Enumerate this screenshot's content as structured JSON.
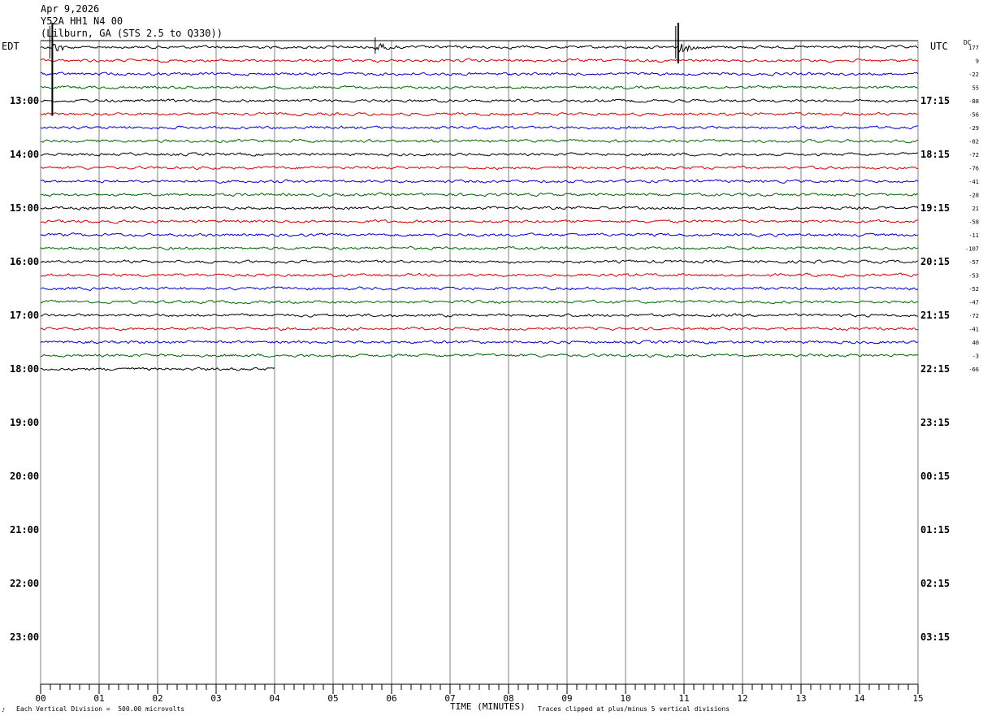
{
  "header": {
    "date": "Apr 9,2026",
    "station": "Y52A HH1 N4 00",
    "location": "(Lilburn, GA (STS 2.5 to Q330))"
  },
  "labels": {
    "left_timezone": "EDT",
    "right_timezone": "UTC",
    "dc_header": "DC"
  },
  "footer": {
    "scale_note": "Each Vertical Division =  500.00 microvolts",
    "time_axis_label": "TIME (MINUTES)",
    "clip_note": "Traces clipped at plus/minus 5 vertical divisions",
    "corner_mark": "♪"
  },
  "colors": {
    "trace_cycle": [
      "#000000",
      "#cc0000",
      "#0000cc",
      "#006600"
    ],
    "grid": "#808080"
  },
  "chart_data": {
    "type": "line",
    "title": "",
    "xlabel": "TIME (MINUTES)",
    "ylabel": "",
    "x_range_minutes": [
      0,
      15
    ],
    "x_ticks": [
      "00",
      "01",
      "02",
      "03",
      "04",
      "05",
      "06",
      "07",
      "08",
      "09",
      "10",
      "11",
      "12",
      "13",
      "14",
      "15"
    ],
    "rows_per_hour": 4,
    "total_rows": 48,
    "left_hour_labels": [
      "13:00",
      "14:00",
      "15:00",
      "16:00",
      "17:00",
      "18:00",
      "19:00",
      "20:00",
      "21:00",
      "22:00",
      "23:00"
    ],
    "right_hour_labels": [
      "17:15",
      "18:15",
      "19:15",
      "20:15",
      "21:15",
      "22:15",
      "23:15",
      "00:15",
      "01:15",
      "02:15",
      "03:15"
    ],
    "first_left_label_row": 4,
    "dc_offsets": [
      177,
      9,
      -22,
      55,
      -88,
      -56,
      -29,
      -82,
      -72,
      -76,
      -41,
      -28,
      21,
      -58,
      -11,
      -107,
      -57,
      -53,
      -52,
      -47,
      -72,
      -41,
      40,
      -3,
      -66
    ],
    "traces_complete": 24,
    "last_trace_end_minute": 4.0,
    "events": [
      {
        "row": 0,
        "minute": 0.2,
        "type": "clipped spike",
        "extends_to_row": 5
      },
      {
        "row": 0,
        "minute": 5.72,
        "type": "spike"
      },
      {
        "row": 0,
        "minute": 10.9,
        "type": "clipped spike"
      }
    ]
  }
}
